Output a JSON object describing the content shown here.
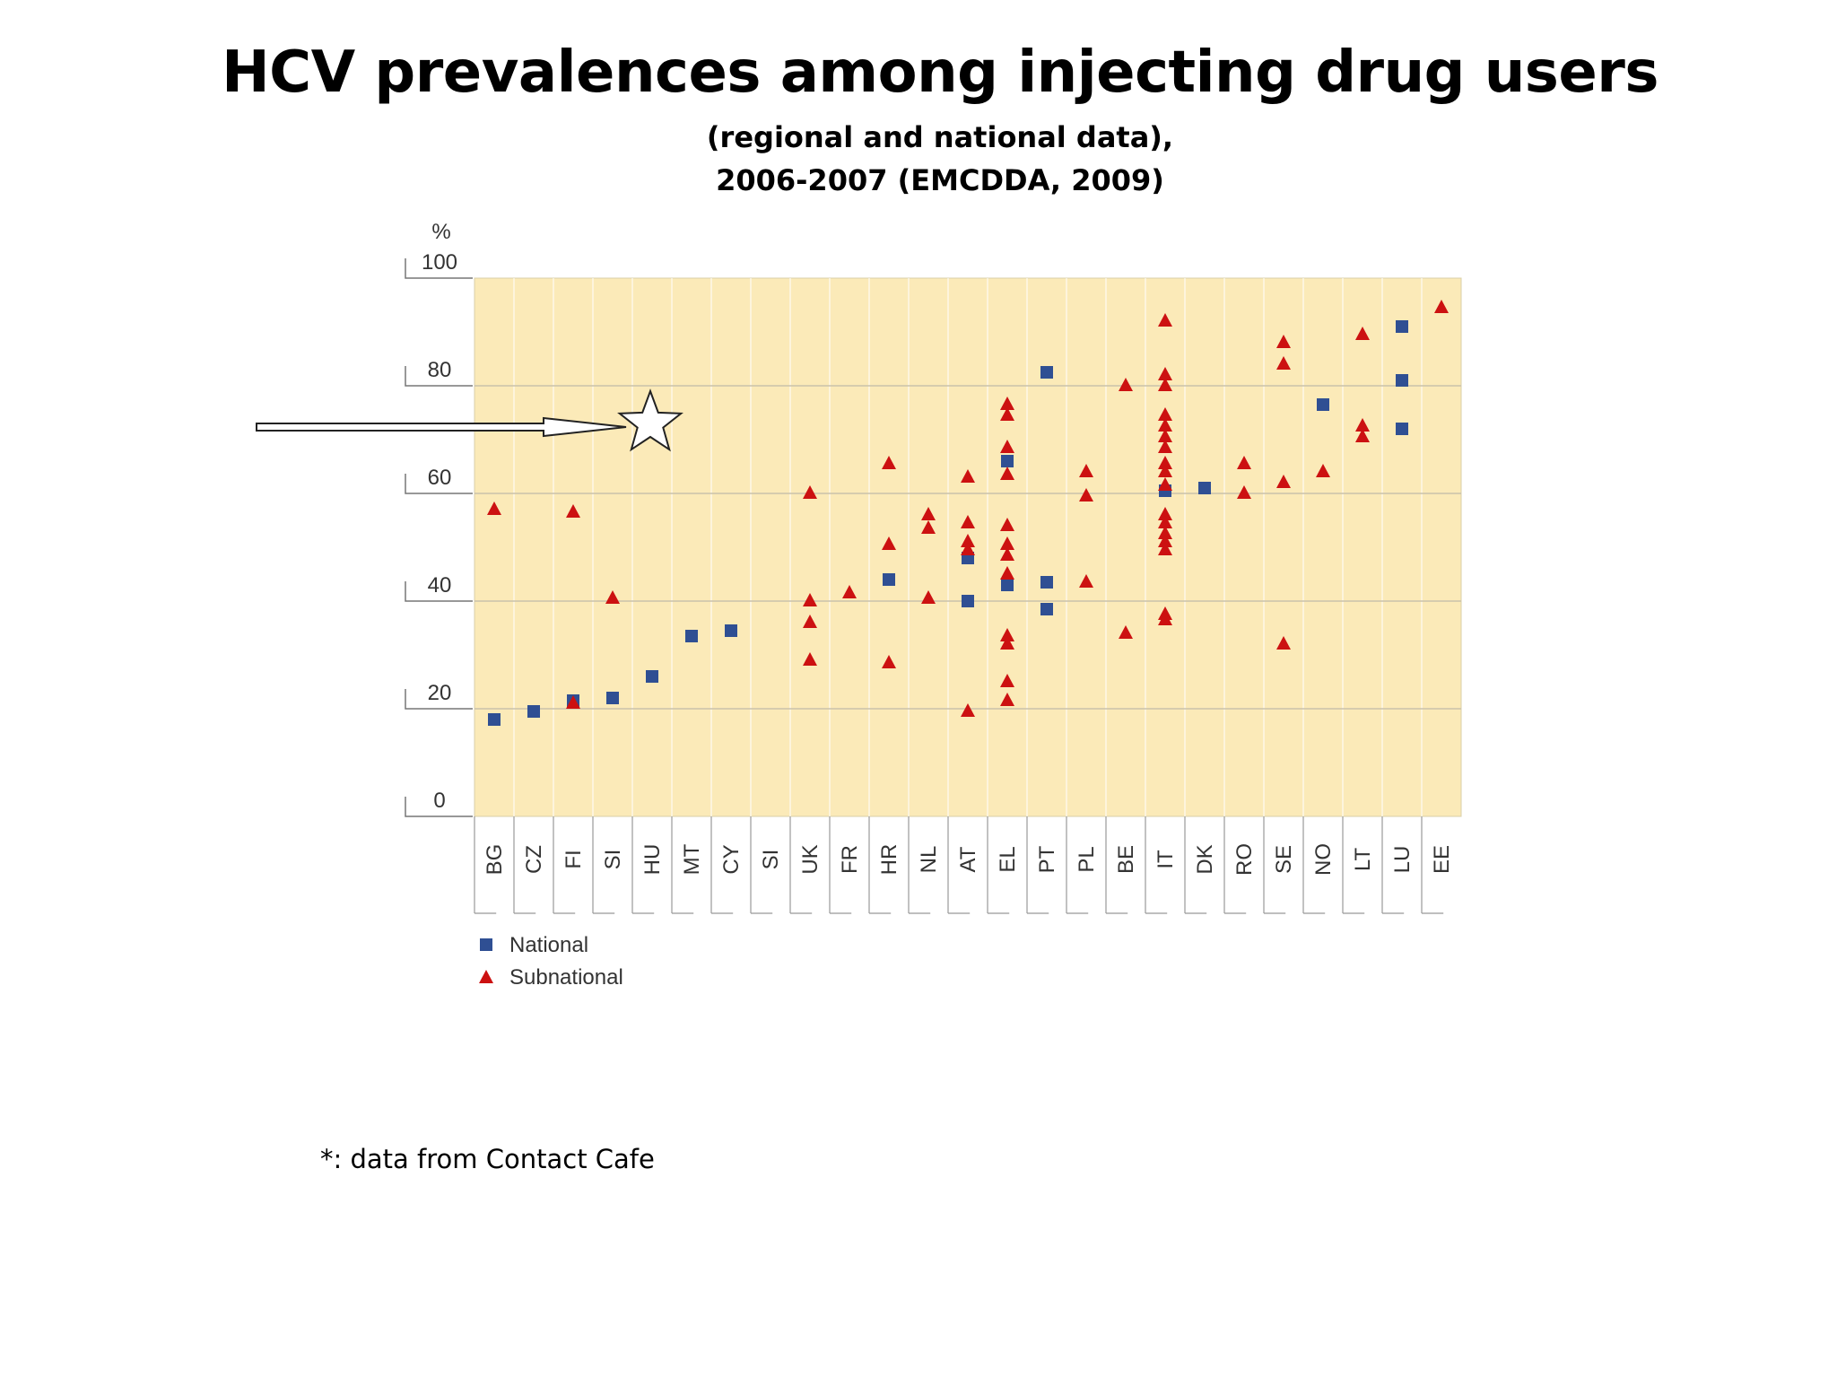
{
  "title": "HCV prevalences among injecting drug users",
  "subtitle_line1": "(regional and national data),",
  "subtitle_line2": "2006-2007 (EMCDDA, 2009)",
  "footnote": "*: data from Contact Cafe",
  "colors": {
    "plot_bg": "#fbeab8",
    "national": "#2f4f93",
    "subnational": "#cc1111",
    "grid": "#c9c2ab"
  },
  "chart_data": {
    "type": "scatter",
    "ylabel": "%",
    "ylim": [
      0,
      100
    ],
    "yticks": [
      0,
      20,
      40,
      60,
      80,
      100
    ],
    "categories": [
      "BG",
      "CZ",
      "FI",
      "SI",
      "HU",
      "MT",
      "CY",
      "SI",
      "UK",
      "FR",
      "HR",
      "NL",
      "AT",
      "EL",
      "PT",
      "PL",
      "BE",
      "IT",
      "DK",
      "RO",
      "SE",
      "NO",
      "LT",
      "LU",
      "EE"
    ],
    "legend": [
      "National",
      "Subnational"
    ],
    "legend_position": "bottom-left",
    "grid": true,
    "series": [
      {
        "name": "National",
        "marker": "square",
        "points": [
          {
            "x": "BG",
            "y": 18
          },
          {
            "x": "CZ",
            "y": 19.5
          },
          {
            "x": "FI",
            "y": 21.5
          },
          {
            "x": "SI",
            "y": 22
          },
          {
            "x": "HU",
            "y": 26
          },
          {
            "x": "MT",
            "y": 33.5
          },
          {
            "x": "CY",
            "y": 34.5
          },
          {
            "x": "HR",
            "y": 44
          },
          {
            "x": "AT",
            "y": 48
          },
          {
            "x": "AT",
            "y": 40
          },
          {
            "x": "EL",
            "y": 66
          },
          {
            "x": "EL",
            "y": 43
          },
          {
            "x": "PT",
            "y": 82.5
          },
          {
            "x": "PT",
            "y": 43.5
          },
          {
            "x": "PT",
            "y": 38.5
          },
          {
            "x": "IT",
            "y": 60.5
          },
          {
            "x": "DK",
            "y": 61
          },
          {
            "x": "NO",
            "y": 76.5
          },
          {
            "x": "LU",
            "y": 91
          },
          {
            "x": "LU",
            "y": 81
          },
          {
            "x": "LU",
            "y": 72
          }
        ]
      },
      {
        "name": "Subnational",
        "marker": "triangle",
        "points": [
          {
            "x": "BG",
            "y": 57
          },
          {
            "x": "FI",
            "y": 56.5
          },
          {
            "x": "FI",
            "y": 21
          },
          {
            "x": "SI",
            "y": 40.5
          },
          {
            "x": "UK",
            "y": 60
          },
          {
            "x": "UK",
            "y": 40
          },
          {
            "x": "UK",
            "y": 36
          },
          {
            "x": "UK",
            "y": 29
          },
          {
            "x": "FR",
            "y": 41.5
          },
          {
            "x": "HR",
            "y": 65.5
          },
          {
            "x": "HR",
            "y": 50.5
          },
          {
            "x": "HR",
            "y": 28.5
          },
          {
            "x": "NL",
            "y": 56
          },
          {
            "x": "NL",
            "y": 53.5
          },
          {
            "x": "NL",
            "y": 40.5
          },
          {
            "x": "AT",
            "y": 63
          },
          {
            "x": "AT",
            "y": 54.5
          },
          {
            "x": "AT",
            "y": 51
          },
          {
            "x": "AT",
            "y": 49.5
          },
          {
            "x": "AT",
            "y": 19.5
          },
          {
            "x": "EL",
            "y": 76.5
          },
          {
            "x": "EL",
            "y": 74.5
          },
          {
            "x": "EL",
            "y": 68.5
          },
          {
            "x": "EL",
            "y": 63.5
          },
          {
            "x": "EL",
            "y": 54
          },
          {
            "x": "EL",
            "y": 50.5
          },
          {
            "x": "EL",
            "y": 48.5
          },
          {
            "x": "EL",
            "y": 45
          },
          {
            "x": "EL",
            "y": 33.5
          },
          {
            "x": "EL",
            "y": 32
          },
          {
            "x": "EL",
            "y": 25
          },
          {
            "x": "EL",
            "y": 21.5
          },
          {
            "x": "PL",
            "y": 64
          },
          {
            "x": "PL",
            "y": 59.5
          },
          {
            "x": "PL",
            "y": 43.5
          },
          {
            "x": "BE",
            "y": 80
          },
          {
            "x": "BE",
            "y": 34
          },
          {
            "x": "IT",
            "y": 92
          },
          {
            "x": "IT",
            "y": 82
          },
          {
            "x": "IT",
            "y": 80
          },
          {
            "x": "IT",
            "y": 74.5
          },
          {
            "x": "IT",
            "y": 72.5
          },
          {
            "x": "IT",
            "y": 70.5
          },
          {
            "x": "IT",
            "y": 68.5
          },
          {
            "x": "IT",
            "y": 65.5
          },
          {
            "x": "IT",
            "y": 64
          },
          {
            "x": "IT",
            "y": 61.5
          },
          {
            "x": "IT",
            "y": 56
          },
          {
            "x": "IT",
            "y": 54.5
          },
          {
            "x": "IT",
            "y": 52.5
          },
          {
            "x": "IT",
            "y": 51
          },
          {
            "x": "IT",
            "y": 49.5
          },
          {
            "x": "IT",
            "y": 37.5
          },
          {
            "x": "IT",
            "y": 36.5
          },
          {
            "x": "RO",
            "y": 65.5
          },
          {
            "x": "RO",
            "y": 60
          },
          {
            "x": "SE",
            "y": 88
          },
          {
            "x": "SE",
            "y": 84
          },
          {
            "x": "SE",
            "y": 62
          },
          {
            "x": "SE",
            "y": 32
          },
          {
            "x": "NO",
            "y": 64
          },
          {
            "x": "LT",
            "y": 89.5
          },
          {
            "x": "LT",
            "y": 72.5
          },
          {
            "x": "LT",
            "y": 70.5
          },
          {
            "x": "EE",
            "y": 94.5
          }
        ]
      }
    ],
    "annotation": {
      "type": "star-with-arrow",
      "x": "HU",
      "y": 73
    }
  }
}
